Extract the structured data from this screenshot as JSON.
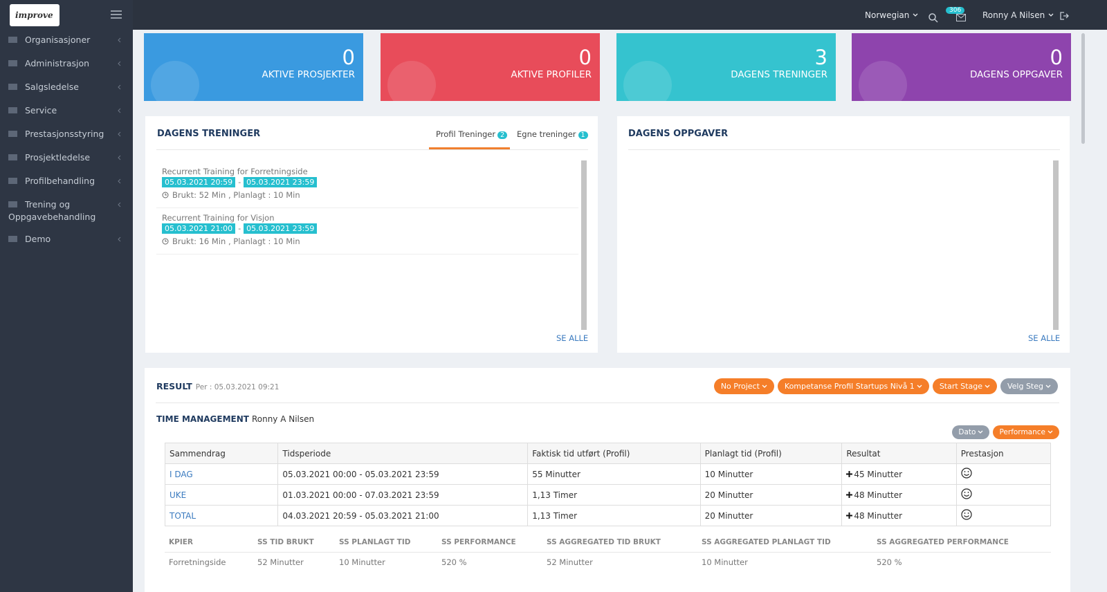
{
  "logo": "improve",
  "topbar": {
    "language": "Norwegian",
    "mail_badge": "306",
    "user": "Ronny A Nilsen"
  },
  "sidebar": [
    "Organisasjoner",
    "Administrasjon",
    "Salgsledelse",
    "Service",
    "Prestasjonsstyring",
    "Prosjektledelse",
    "Profilbehandling",
    "Trening og Oppgavebehandling",
    "Demo"
  ],
  "stats": [
    {
      "value": 0,
      "label": "AKTIVE PROSJEKTER",
      "color": "#3a9ae0"
    },
    {
      "value": 0,
      "label": "AKTIVE PROFILER",
      "color": "#e84c5a"
    },
    {
      "value": 3,
      "label": "DAGENS TRENINGER",
      "color": "#35c3cf"
    },
    {
      "value": 0,
      "label": "DAGENS OPPGAVER",
      "color": "#8e44ad"
    }
  ],
  "trainings": {
    "title": "DAGENS TRENINGER",
    "tabs": [
      {
        "label": "Profil Treninger",
        "count": 2
      },
      {
        "label": "Egne treninger",
        "count": 1
      }
    ],
    "date_separator": "-",
    "items": [
      {
        "title": "Recurrent Training for Forretningside",
        "start": "05.03.2021 20:59",
        "end": "05.03.2021 23:59",
        "usage": "Brukt: 52 Min , Planlagt : 10 Min"
      },
      {
        "title": "Recurrent Training for Visjon",
        "start": "05.03.2021 21:00",
        "end": "05.03.2021 23:59",
        "usage": "Brukt: 16 Min , Planlagt : 10 Min"
      }
    ],
    "see_all": "SE ALLE"
  },
  "tasks": {
    "title": "DAGENS OPPGAVER",
    "see_all": "SE ALLE"
  },
  "result": {
    "title": "RESULT",
    "per": "Per : 05.03.2021 09:21",
    "buttons": [
      "No Project",
      "Kompetanse Profil Startups Nivå 1",
      "Start Stage",
      "Velg Steg"
    ],
    "section": "TIME MANAGEMENT",
    "user": "Ronny A Nilsen",
    "filters": [
      "Dato",
      "Performance"
    ],
    "table": {
      "header": [
        "Sammendrag",
        "Tidsperiode",
        "Faktisk tid utført (Profil)",
        "Planlagt tid (Profil)",
        "Resultat",
        "Prestasjon"
      ],
      "rows": [
        [
          "I DAG",
          "05.03.2021 00:00 - 05.03.2021 23:59",
          "55 Minutter",
          "10 Minutter",
          "45 Minutter"
        ],
        [
          "UKE",
          "01.03.2021 00:00 - 07.03.2021 23:59",
          "1,13 Timer",
          "20 Minutter",
          "48 Minutter"
        ],
        [
          "TOTAL",
          "04.03.2021 20:59 - 05.03.2021 21:00",
          "1,13 Timer",
          "20 Minutter",
          "48 Minutter"
        ]
      ]
    },
    "kpi": {
      "header": [
        "KPIER",
        "SS TID BRUKT",
        "SS PLANLAGT TID",
        "SS PERFORMANCE",
        "SS AGGREGATED TID BRUKT",
        "SS AGGREGATED PLANLAGT TID",
        "SS AGGREGATED PERFORMANCE"
      ],
      "rows": [
        [
          "Forretningside",
          "52 Minutter",
          "10 Minutter",
          "520 %",
          "52 Minutter",
          "10 Minutter",
          "520 %"
        ]
      ]
    }
  }
}
